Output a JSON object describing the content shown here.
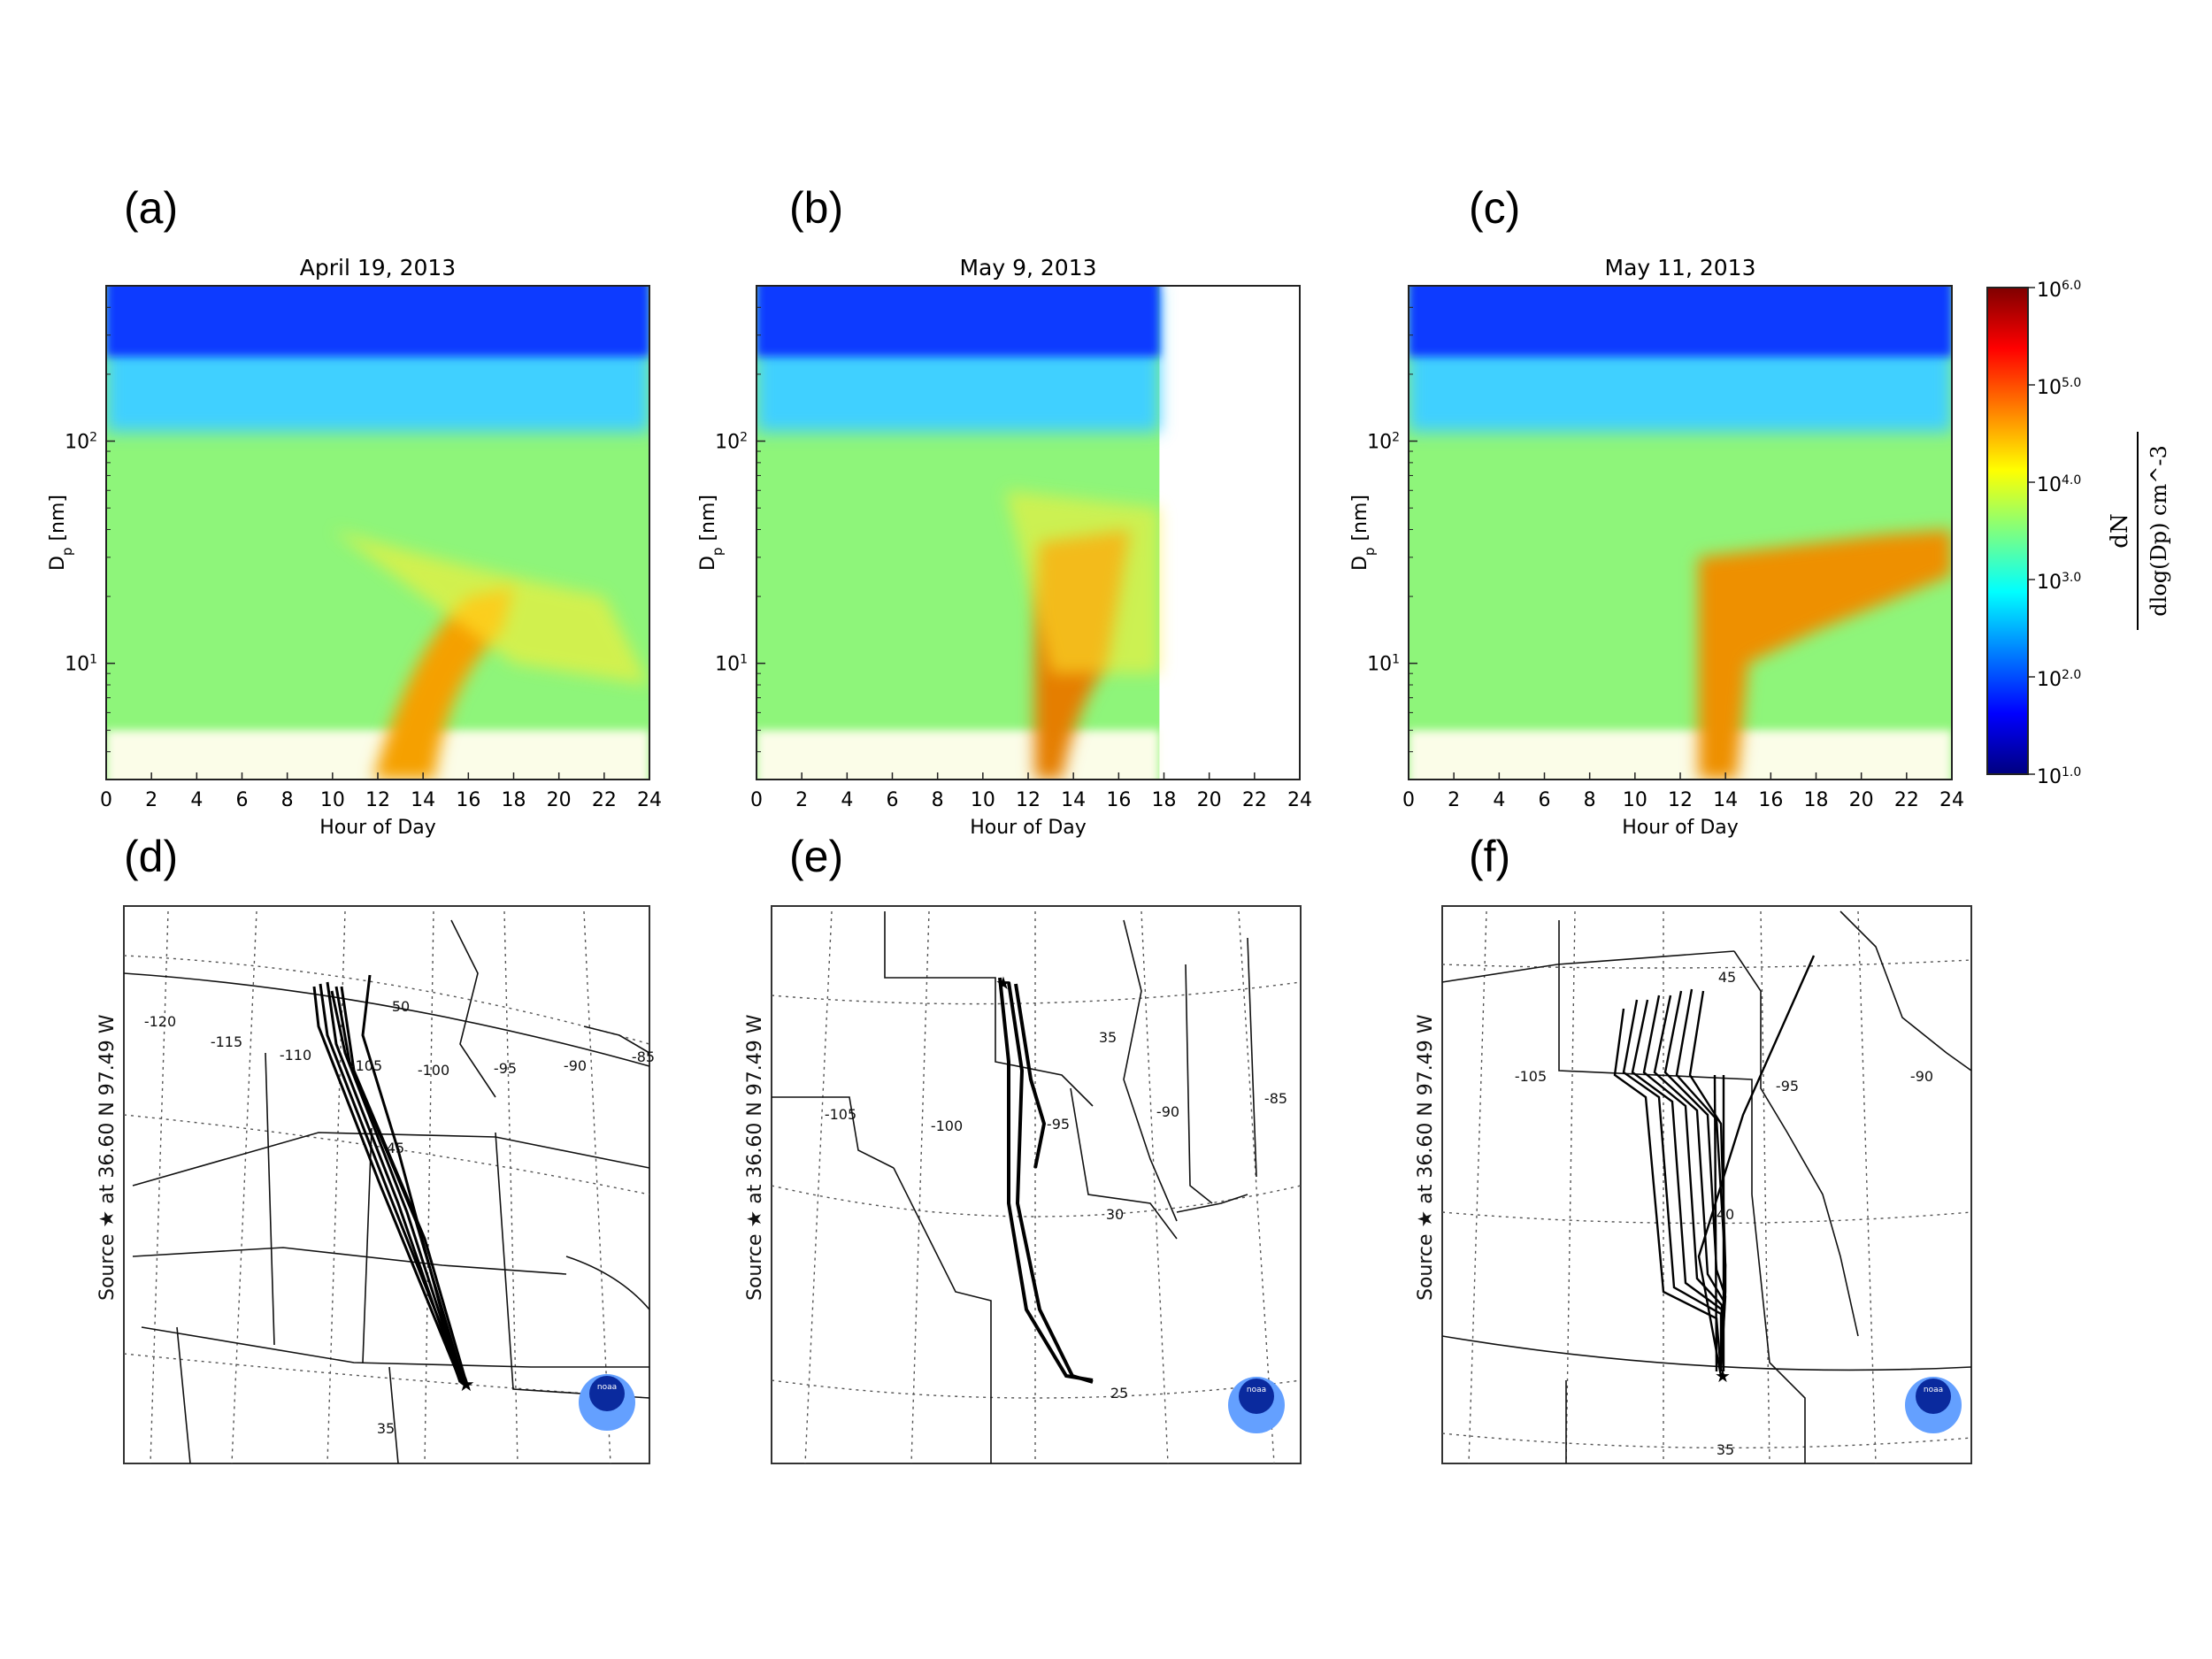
{
  "panels": {
    "a": {
      "label": "(a)",
      "title": "April 19, 2013"
    },
    "b": {
      "label": "(b)",
      "title": "May 9, 2013"
    },
    "c": {
      "label": "(c)",
      "title": "May 11, 2013"
    },
    "d": {
      "label": "(d)"
    },
    "e": {
      "label": "(e)"
    },
    "f": {
      "label": "(f)"
    }
  },
  "chart_data": [
    {
      "type": "heatmap",
      "title": "April 19, 2013",
      "xlabel": "Hour of Day",
      "ylabel": "D_p [nm]",
      "yscale": "log",
      "xlim": [
        0,
        24
      ],
      "ylim": [
        3,
        500
      ],
      "xticks": [
        0,
        2,
        4,
        6,
        8,
        10,
        12,
        14,
        16,
        18,
        20,
        22,
        24
      ],
      "yticks": [
        "10^1",
        "10^2"
      ],
      "data_end_hour": 24
    },
    {
      "type": "heatmap",
      "title": "May 9, 2013",
      "xlabel": "Hour of Day",
      "ylabel": "D_p [nm]",
      "yscale": "log",
      "xlim": [
        0,
        24
      ],
      "ylim": [
        3,
        500
      ],
      "xticks": [
        0,
        2,
        4,
        6,
        8,
        10,
        12,
        14,
        16,
        18,
        20,
        22,
        24
      ],
      "yticks": [
        "10^1",
        "10^2"
      ],
      "data_end_hour": 17.8
    },
    {
      "type": "heatmap",
      "title": "May 11, 2013",
      "xlabel": "Hour of Day",
      "ylabel": "D_p [nm]",
      "yscale": "log",
      "xlim": [
        0,
        24
      ],
      "ylim": [
        3,
        500
      ],
      "xticks": [
        0,
        2,
        4,
        6,
        8,
        10,
        12,
        14,
        16,
        18,
        20,
        22,
        24
      ],
      "yticks": [
        "10^1",
        "10^2"
      ],
      "data_end_hour": 24
    }
  ],
  "colorbar": {
    "ticks": [
      "10^1.0",
      "10^2.0",
      "10^3.0",
      "10^4.0",
      "10^5.0",
      "10^6.0"
    ],
    "label_num": "dN",
    "label_den": "dlog(Dp) cm^-3",
    "colormap": [
      "#00007f",
      "#0000ff",
      "#007fff",
      "#00ffff",
      "#7fff7f",
      "#ffff00",
      "#ff7f00",
      "#ff0000",
      "#7f0000"
    ]
  },
  "maps": {
    "side_label": "Source ★ at 36.60 N 97.49 W",
    "d": {
      "lat_labels": [
        "50",
        "45",
        "35"
      ],
      "lon_labels": [
        "-120",
        "-115",
        "-110",
        "-105",
        "-100",
        "-95",
        "-90",
        "-85"
      ]
    },
    "e": {
      "lat_labels": [
        "35",
        "30",
        "25"
      ],
      "lon_labels": [
        "-105",
        "-100",
        "-95",
        "-90",
        "-85"
      ]
    },
    "f": {
      "lat_labels": [
        "45",
        "40",
        "35"
      ],
      "lon_labels": [
        "-105",
        "-95",
        "-90"
      ]
    },
    "logo_text": "noaa"
  }
}
